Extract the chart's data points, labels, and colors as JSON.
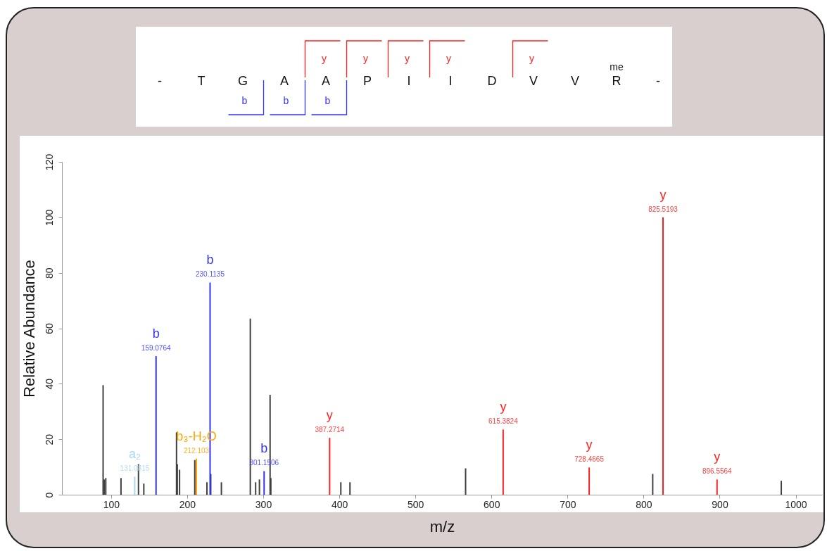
{
  "chart_data": {
    "type": "bar",
    "xlabel": "m/z",
    "ylabel": "Relative Abundance",
    "xlim": [
      40,
      1030
    ],
    "ylim": [
      0,
      120
    ],
    "xticks": [
      100,
      200,
      300,
      400,
      500,
      600,
      700,
      800,
      900,
      1000
    ],
    "yticks": [
      0,
      20,
      40,
      60,
      80,
      100,
      120
    ],
    "grid": false,
    "legend": false,
    "series": [
      {
        "color": "#404040",
        "x": [
          89.5,
          91,
          93,
          113,
          136,
          143,
          186,
          187,
          190,
          210,
          226,
          231,
          245,
          283,
          290,
          295,
          309,
          310,
          402,
          414,
          566,
          812,
          981
        ],
        "values": [
          39.5,
          5.5,
          6,
          6,
          11,
          4,
          22.5,
          11,
          9,
          12.5,
          4.5,
          7.5,
          4.5,
          63.5,
          4.5,
          5.5,
          36,
          6,
          4.5,
          4.5,
          9.5,
          7.5,
          5
        ]
      },
      {
        "color": "#a8d8ee",
        "x": [
          131.0815
        ],
        "values": [
          6.5
        ]
      },
      {
        "color": "#3333ff",
        "x": [
          159.0764,
          230.1135,
          301.1506
        ],
        "values": [
          50,
          76.5,
          8.5
        ]
      },
      {
        "color": "#ffa500",
        "x": [
          212.103
        ],
        "values": [
          13
        ]
      },
      {
        "color": "#ff2020",
        "x": [
          387.2714,
          615.3824,
          728.4665,
          825.5193,
          896.5564
        ],
        "values": [
          20.5,
          23.5,
          9.8,
          100,
          5.5
        ]
      }
    ],
    "annotations": [
      {
        "text": "a₂",
        "x": 131.0815,
        "y": 6.5
      },
      {
        "text": "131.0815",
        "x": 131.0815,
        "y": 6.5
      },
      {
        "text": "b",
        "x": 159.0764,
        "y": 50
      },
      {
        "text": "159.0764",
        "x": 159.0764,
        "y": 50
      },
      {
        "text": "b₃-H₂O",
        "x": 212.103,
        "y": 13
      },
      {
        "text": "212.103",
        "x": 212.103,
        "y": 13
      },
      {
        "text": "b",
        "x": 230.1135,
        "y": 76.5
      },
      {
        "text": "230.1135",
        "x": 230.1135,
        "y": 76.5
      },
      {
        "text": "b",
        "x": 301.1506,
        "y": 8.5
      },
      {
        "text": "301.1506",
        "x": 301.1506,
        "y": 8.5
      },
      {
        "text": "y",
        "x": 387.2714,
        "y": 20.5
      },
      {
        "text": "387.2714",
        "x": 387.2714,
        "y": 20.5
      },
      {
        "text": "y",
        "x": 615.3824,
        "y": 23.5
      },
      {
        "text": "615.3824",
        "x": 615.3824,
        "y": 23.5
      },
      {
        "text": "y",
        "x": 728.4665,
        "y": 9.8
      },
      {
        "text": "728.4665",
        "x": 728.4665,
        "y": 9.8
      },
      {
        "text": "y",
        "x": 825.5193,
        "y": 100
      },
      {
        "text": "825.5193",
        "x": 825.5193,
        "y": 100
      },
      {
        "text": "y",
        "x": 896.5564,
        "y": 5.5
      },
      {
        "text": "896.5564",
        "x": 896.5564,
        "y": 5.5
      },
      "-",
      "T",
      "G",
      "A",
      "A",
      "P",
      "I",
      "I",
      "D",
      "V",
      "V",
      "R",
      "-",
      "me",
      "y",
      "y",
      "y",
      "y",
      "y",
      "b",
      "b",
      "b"
    ]
  }
}
